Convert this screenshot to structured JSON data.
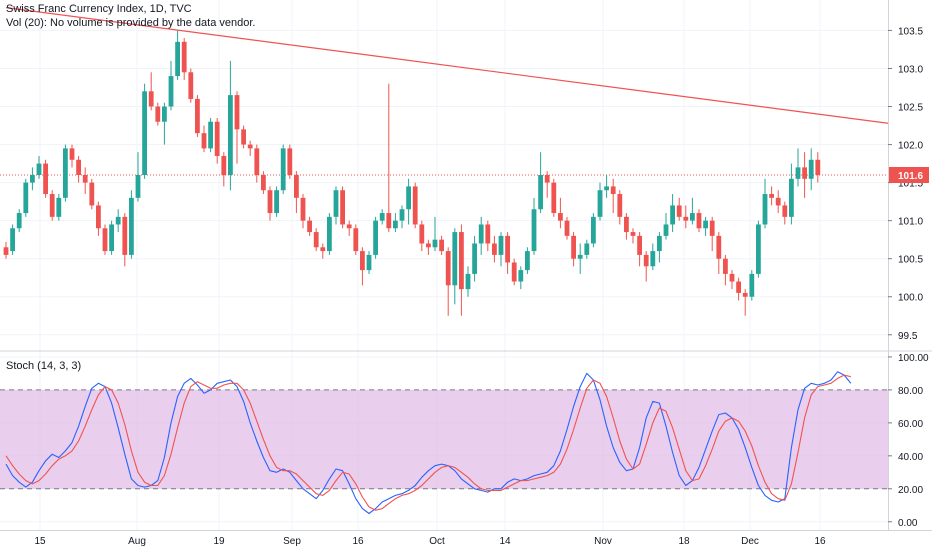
{
  "legend": {
    "main_title": "Swiss Franc Currency Index, 1D, TVC",
    "volume_note": "Vol (20): No volume is provided by the data vendor.",
    "stoch_title": "Stoch (14, 3, 3)"
  },
  "colors": {
    "up": "#26a69a",
    "down": "#ef5350",
    "trendline": "#f05350",
    "price_line": "#ef5350",
    "stoch_k": "#2962ff",
    "stoch_d": "#ef5350",
    "stoch_band": "#e1bee7"
  },
  "chart_data": [
    {
      "type": "candlestick",
      "title": "Swiss Franc Currency Index, 1D, TVC",
      "x_ticks": [
        "15",
        "Aug",
        "19",
        "Sep",
        "16",
        "Oct",
        "14",
        "Nov",
        "18",
        "Dec",
        "16"
      ],
      "y_ticks": [
        "103.5",
        "103.0",
        "102.5",
        "102.0",
        "101.5",
        "101.0",
        "100.5",
        "100.0",
        "99.5"
      ],
      "ylim": [
        99.3,
        103.9
      ],
      "last_price": "101.6",
      "trendline": {
        "from": [
          0,
          103.8
        ],
        "to": [
          120,
          102.28
        ]
      },
      "candles": [
        [
          100.65,
          100.55,
          100.72,
          100.5
        ],
        [
          100.6,
          100.9,
          100.95,
          100.55
        ],
        [
          100.9,
          101.1,
          101.15,
          100.85
        ],
        [
          101.1,
          101.5,
          101.55,
          101.05
        ],
        [
          101.5,
          101.6,
          101.7,
          101.4
        ],
        [
          101.6,
          101.75,
          101.85,
          101.55
        ],
        [
          101.75,
          101.35,
          101.8,
          101.3
        ],
        [
          101.35,
          101.05,
          101.4,
          101.0
        ],
        [
          101.05,
          101.3,
          101.35,
          101.0
        ],
        [
          101.3,
          101.95,
          102.0,
          101.25
        ],
        [
          101.95,
          101.8,
          102.0,
          101.7
        ],
        [
          101.8,
          101.6,
          101.85,
          101.5
        ],
        [
          101.6,
          101.5,
          101.7,
          101.35
        ],
        [
          101.5,
          101.2,
          101.55,
          101.15
        ],
        [
          101.2,
          100.9,
          101.25,
          100.8
        ],
        [
          100.9,
          100.6,
          100.95,
          100.55
        ],
        [
          100.6,
          100.95,
          101.0,
          100.55
        ],
        [
          100.95,
          101.05,
          101.15,
          100.85
        ],
        [
          101.05,
          100.55,
          101.1,
          100.4
        ],
        [
          100.55,
          101.3,
          101.4,
          100.5
        ],
        [
          101.3,
          101.6,
          101.9,
          101.25
        ],
        [
          101.6,
          102.7,
          102.8,
          101.55
        ],
        [
          102.7,
          102.5,
          102.95,
          102.45
        ],
        [
          102.5,
          102.3,
          102.55,
          102.25
        ],
        [
          102.3,
          102.5,
          102.55,
          102.0
        ],
        [
          102.5,
          102.9,
          103.1,
          102.45
        ],
        [
          102.9,
          103.35,
          103.5,
          102.85
        ],
        [
          103.35,
          102.95,
          103.4,
          102.85
        ],
        [
          102.95,
          102.6,
          103.0,
          102.55
        ],
        [
          102.6,
          102.15,
          102.65,
          102.1
        ],
        [
          102.15,
          101.95,
          102.25,
          101.9
        ],
        [
          101.95,
          102.3,
          102.35,
          101.9
        ],
        [
          102.3,
          101.85,
          102.35,
          101.75
        ],
        [
          101.85,
          101.6,
          101.9,
          101.45
        ],
        [
          101.6,
          102.65,
          103.1,
          101.4
        ],
        [
          102.65,
          102.2,
          102.7,
          101.75
        ],
        [
          102.2,
          102.0,
          102.25,
          101.95
        ],
        [
          102.0,
          101.95,
          102.05,
          101.85
        ],
        [
          101.95,
          101.6,
          102.0,
          101.5
        ],
        [
          101.6,
          101.4,
          101.65,
          101.35
        ],
        [
          101.4,
          101.1,
          101.45,
          101.0
        ],
        [
          101.1,
          101.4,
          101.45,
          101.05
        ],
        [
          101.4,
          101.95,
          102.0,
          101.35
        ],
        [
          101.95,
          101.6,
          102.0,
          101.55
        ],
        [
          101.6,
          101.3,
          101.65,
          101.1
        ],
        [
          101.3,
          101.0,
          101.35,
          100.9
        ],
        [
          101.0,
          100.85,
          101.05,
          100.8
        ],
        [
          100.85,
          100.65,
          100.9,
          100.6
        ],
        [
          100.65,
          100.6,
          100.7,
          100.5
        ],
        [
          100.6,
          101.05,
          101.1,
          100.55
        ],
        [
          101.05,
          101.4,
          101.45,
          100.95
        ],
        [
          101.4,
          100.95,
          101.45,
          100.9
        ],
        [
          100.95,
          100.9,
          101.0,
          100.8
        ],
        [
          100.9,
          100.6,
          100.95,
          100.55
        ],
        [
          100.6,
          100.35,
          100.65,
          100.15
        ],
        [
          100.35,
          100.55,
          100.6,
          100.3
        ],
        [
          100.55,
          101.0,
          101.05,
          100.5
        ],
        [
          101.0,
          101.1,
          101.15,
          100.95
        ],
        [
          101.1,
          100.9,
          102.8,
          100.85
        ],
        [
          100.9,
          101.0,
          101.1,
          100.85
        ],
        [
          101.0,
          101.15,
          101.2,
          100.9
        ],
        [
          101.15,
          101.45,
          101.55,
          100.95
        ],
        [
          101.45,
          100.95,
          101.5,
          100.9
        ],
        [
          100.95,
          100.7,
          101.0,
          100.6
        ],
        [
          100.7,
          100.65,
          100.75,
          100.55
        ],
        [
          100.65,
          100.75,
          101.05,
          100.6
        ],
        [
          100.75,
          100.6,
          100.8,
          100.55
        ],
        [
          100.6,
          100.15,
          100.65,
          99.75
        ],
        [
          100.15,
          100.85,
          100.9,
          99.9
        ],
        [
          100.85,
          100.1,
          100.95,
          99.75
        ],
        [
          100.1,
          100.3,
          100.4,
          100.0
        ],
        [
          100.3,
          100.7,
          100.8,
          100.2
        ],
        [
          100.7,
          100.95,
          101.05,
          100.55
        ],
        [
          100.95,
          100.7,
          101.0,
          100.6
        ],
        [
          100.7,
          100.55,
          100.8,
          100.45
        ],
        [
          100.55,
          100.8,
          100.85,
          100.4
        ],
        [
          100.8,
          100.45,
          100.85,
          100.3
        ],
        [
          100.45,
          100.2,
          100.5,
          100.15
        ],
        [
          100.2,
          100.35,
          100.4,
          100.1
        ],
        [
          100.35,
          100.6,
          100.65,
          100.3
        ],
        [
          100.6,
          101.15,
          101.3,
          100.55
        ],
        [
          101.15,
          101.6,
          101.9,
          101.1
        ],
        [
          101.6,
          101.5,
          101.65,
          101.3
        ],
        [
          101.5,
          101.1,
          101.55,
          101.05
        ],
        [
          101.1,
          101.0,
          101.3,
          100.9
        ],
        [
          101.0,
          100.8,
          101.05,
          100.75
        ],
        [
          100.8,
          100.5,
          100.85,
          100.4
        ],
        [
          100.5,
          100.55,
          100.7,
          100.3
        ],
        [
          100.55,
          100.7,
          100.75,
          100.5
        ],
        [
          100.7,
          101.05,
          101.1,
          100.65
        ],
        [
          101.05,
          101.4,
          101.5,
          101.0
        ],
        [
          101.4,
          101.45,
          101.6,
          101.3
        ],
        [
          101.45,
          101.35,
          101.55,
          101.1
        ],
        [
          101.35,
          101.05,
          101.4,
          100.95
        ],
        [
          101.05,
          100.85,
          101.1,
          100.75
        ],
        [
          100.85,
          100.8,
          100.9,
          100.7
        ],
        [
          100.8,
          100.55,
          100.85,
          100.4
        ],
        [
          100.55,
          100.4,
          100.6,
          100.2
        ],
        [
          100.4,
          100.6,
          100.7,
          100.35
        ],
        [
          100.6,
          100.8,
          100.85,
          100.45
        ],
        [
          100.8,
          100.95,
          101.1,
          100.75
        ],
        [
          100.95,
          101.2,
          101.35,
          100.85
        ],
        [
          101.2,
          101.05,
          101.3,
          101.0
        ],
        [
          101.05,
          101.0,
          101.2,
          100.9
        ],
        [
          101.0,
          101.1,
          101.3,
          100.95
        ],
        [
          101.1,
          100.9,
          101.15,
          100.85
        ],
        [
          100.9,
          101.0,
          101.05,
          100.8
        ],
        [
          101.0,
          100.8,
          101.05,
          100.6
        ],
        [
          100.8,
          100.5,
          100.85,
          100.3
        ],
        [
          100.5,
          100.3,
          100.55,
          100.15
        ],
        [
          100.3,
          100.2,
          100.35,
          100.1
        ],
        [
          100.2,
          100.05,
          100.25,
          99.95
        ],
        [
          100.05,
          100.0,
          100.1,
          99.75
        ],
        [
          100.0,
          100.3,
          100.35,
          99.95
        ],
        [
          100.3,
          100.95,
          101.0,
          100.25
        ],
        [
          100.95,
          101.35,
          101.55,
          100.9
        ],
        [
          101.35,
          101.3,
          101.45,
          101.2
        ],
        [
          101.3,
          101.2,
          101.4,
          101.1
        ],
        [
          101.2,
          101.05,
          101.25,
          100.95
        ],
        [
          101.05,
          101.55,
          101.75,
          100.95
        ],
        [
          101.55,
          101.7,
          101.95,
          101.45
        ],
        [
          101.7,
          101.55,
          101.9,
          101.3
        ],
        [
          101.55,
          101.8,
          101.95,
          101.4
        ],
        [
          101.8,
          101.6,
          101.9,
          101.5
        ]
      ]
    },
    {
      "type": "line",
      "title": "Stoch (14, 3, 3)",
      "y_ticks": [
        "100.00",
        "80.00",
        "60.00",
        "40.00",
        "20.00",
        "0.00"
      ],
      "ylim": [
        -5,
        103
      ],
      "bands": [
        20,
        80
      ],
      "series": [
        {
          "name": "",
          "values": [
            35,
            28,
            24,
            21,
            24,
            31,
            37,
            41,
            39,
            43,
            48,
            58,
            70,
            81,
            84,
            82,
            72,
            57,
            41,
            26,
            22,
            21,
            22,
            25,
            39,
            60,
            76,
            84,
            87,
            83,
            78,
            80,
            84,
            85,
            86,
            82,
            73,
            60,
            49,
            39,
            31,
            30,
            32,
            30,
            25,
            20,
            17,
            14,
            19,
            26,
            32,
            31,
            23,
            14,
            8,
            5,
            8,
            12,
            14,
            16,
            17,
            19,
            22,
            27,
            31,
            34,
            35,
            34,
            31,
            26,
            23,
            20,
            19,
            18,
            20,
            20,
            24,
            26,
            25,
            26,
            28,
            29,
            30,
            34,
            43,
            56,
            70,
            82,
            90,
            86,
            74,
            58,
            45,
            36,
            31,
            32,
            45,
            63,
            73,
            72,
            58,
            42,
            28,
            22,
            25,
            33,
            44,
            55,
            65,
            66,
            63,
            56,
            45,
            33,
            22,
            16,
            13,
            12,
            14,
            45,
            68,
            81,
            84,
            83,
            84,
            86,
            91,
            89,
            84
          ]
        },
        {
          "name": "",
          "values": [
            40,
            34,
            29,
            25,
            23,
            25,
            29,
            34,
            38,
            40,
            43,
            49,
            58,
            68,
            77,
            82,
            80,
            72,
            59,
            43,
            30,
            24,
            22,
            22,
            28,
            41,
            57,
            72,
            82,
            85,
            83,
            81,
            81,
            83,
            84,
            84,
            80,
            72,
            61,
            50,
            40,
            33,
            31,
            31,
            29,
            25,
            21,
            17,
            16,
            19,
            25,
            30,
            29,
            23,
            15,
            9,
            7,
            8,
            11,
            14,
            16,
            17,
            19,
            22,
            26,
            30,
            33,
            34,
            33,
            30,
            27,
            23,
            20,
            19,
            19,
            19,
            21,
            23,
            25,
            25,
            26,
            27,
            28,
            30,
            35,
            44,
            56,
            69,
            81,
            86,
            84,
            76,
            63,
            49,
            38,
            32,
            35,
            47,
            60,
            69,
            67,
            57,
            44,
            31,
            25,
            26,
            34,
            44,
            55,
            61,
            63,
            61,
            55,
            46,
            34,
            24,
            17,
            14,
            13,
            23,
            42,
            63,
            77,
            82,
            83,
            84,
            87,
            89,
            88
          ]
        }
      ]
    }
  ]
}
